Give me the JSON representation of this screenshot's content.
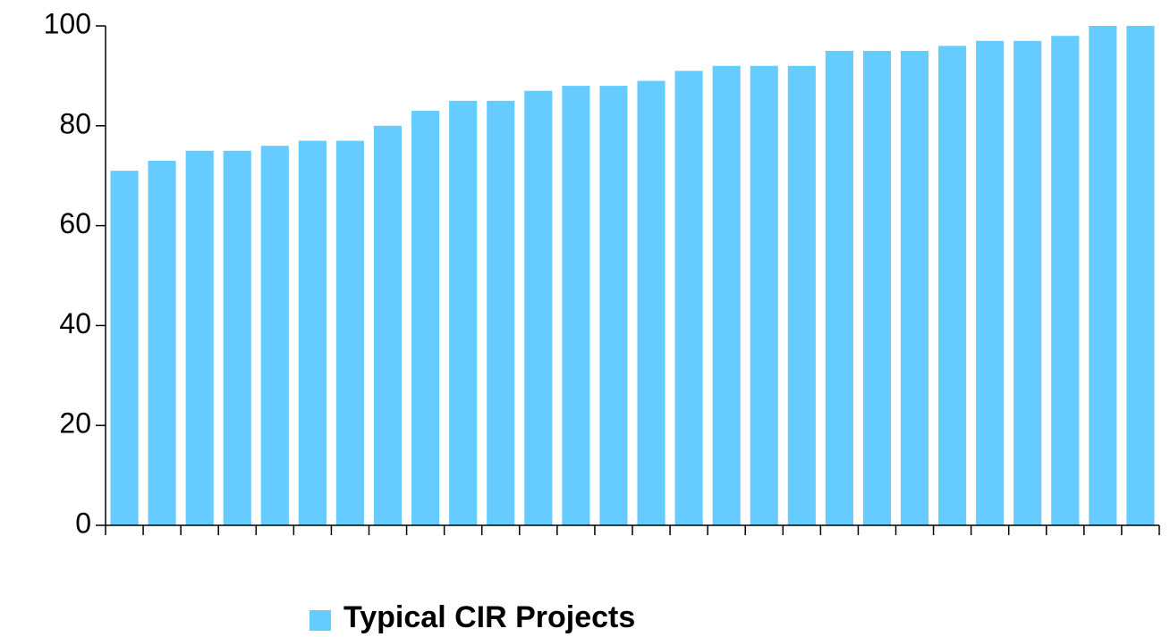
{
  "chart_data": {
    "type": "bar",
    "categories": [
      null,
      null,
      null,
      null,
      null,
      null,
      null,
      null,
      null,
      null,
      null,
      null,
      null,
      null,
      null,
      null,
      null,
      null,
      null,
      null,
      null,
      null,
      null,
      null,
      null,
      null,
      null,
      null
    ],
    "series": [
      {
        "name": "Typical CIR Projects",
        "color": "#66ccff",
        "values": [
          71,
          73,
          75,
          75,
          76,
          77,
          77,
          80,
          83,
          85,
          85,
          87,
          88,
          88,
          89,
          91,
          92,
          92,
          92,
          95,
          95,
          95,
          96,
          97,
          97,
          98,
          100,
          100
        ]
      }
    ],
    "ylim": [
      0,
      100
    ],
    "yticks": [
      0,
      20,
      40,
      60,
      80,
      100
    ],
    "grid": false,
    "legend": "bottom"
  }
}
